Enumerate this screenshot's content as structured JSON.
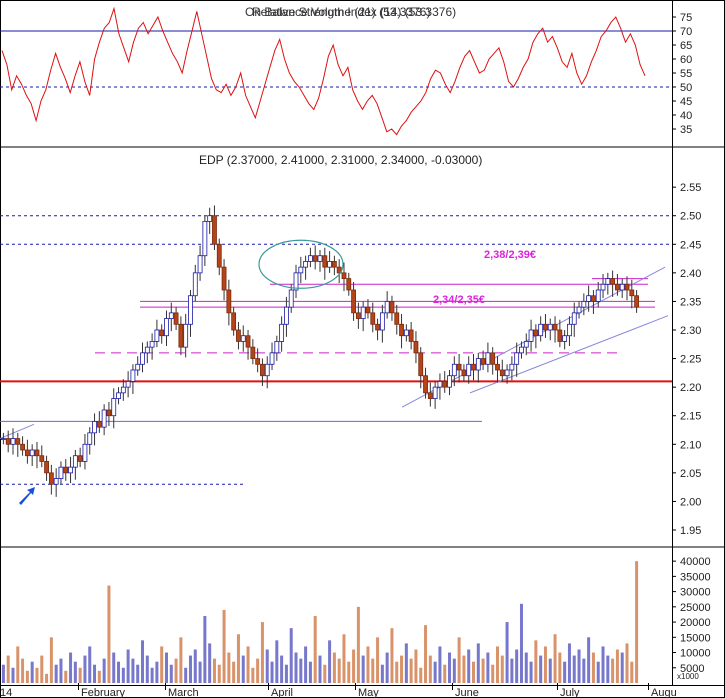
{
  "chart_data": [
    {
      "panel": "rsi",
      "type": "line",
      "title": "Relative Strength Index (14) (53.3376)",
      "overlay_title": "On Balance Volume (21) (53.3376)",
      "ylim": [
        30,
        80
      ],
      "yticks": [
        35,
        40,
        45,
        50,
        55,
        60,
        65,
        70,
        75
      ],
      "reference_lines": [
        70,
        50
      ],
      "series": [
        {
          "color": "#dd1111",
          "values": [
            63,
            58,
            49,
            54,
            51,
            47,
            44,
            38,
            45,
            49,
            56,
            62,
            57,
            53,
            48,
            54,
            59,
            52,
            47,
            60,
            66,
            71,
            73,
            78,
            69,
            64,
            59,
            66,
            71,
            73,
            69,
            72,
            75,
            70,
            66,
            62,
            59,
            55,
            63,
            70,
            77,
            69,
            61,
            53,
            49,
            48,
            51,
            47,
            50,
            55,
            47,
            43,
            39,
            45,
            51,
            57,
            63,
            67,
            60,
            55,
            52,
            50,
            47,
            44,
            42,
            46,
            53,
            61,
            65,
            58,
            54,
            57,
            49,
            45,
            42,
            45,
            47,
            44,
            39,
            34,
            35,
            33,
            36,
            38,
            41,
            43,
            45,
            48,
            53,
            56,
            55,
            51,
            48,
            52,
            57,
            61,
            63,
            59,
            55,
            56,
            60,
            62,
            64,
            59,
            52,
            50,
            53,
            57,
            60,
            66,
            69,
            71,
            66,
            68,
            64,
            59,
            57,
            62,
            55,
            51,
            54,
            59,
            63,
            68,
            70,
            73,
            75,
            71,
            66,
            69,
            65,
            58,
            54
          ]
        }
      ]
    },
    {
      "panel": "price",
      "type": "candlestick",
      "title": "EDP (2.37000, 2.41000, 2.31000, 2.34000, -0.03000)",
      "ylim": [
        1.95,
        2.58
      ],
      "yticks": [
        "1.95",
        "2.00",
        "2.05",
        "2.10",
        "2.15",
        "2.20",
        "2.25",
        "2.30",
        "2.35",
        "2.40",
        "2.45",
        "2.50",
        "2.55"
      ],
      "x_labels": [
        "14",
        "February",
        "March",
        "April",
        "May",
        "June",
        "July",
        "Augu"
      ],
      "closes": [
        2.11,
        2.1,
        2.11,
        2.1,
        2.09,
        2.08,
        2.09,
        2.08,
        2.07,
        2.05,
        2.03,
        2.04,
        2.06,
        2.05,
        2.06,
        2.08,
        2.07,
        2.1,
        2.12,
        2.14,
        2.13,
        2.16,
        2.15,
        2.18,
        2.19,
        2.2,
        2.21,
        2.23,
        2.24,
        2.26,
        2.27,
        2.28,
        2.3,
        2.29,
        2.32,
        2.33,
        2.31,
        2.27,
        2.31,
        2.36,
        2.4,
        2.43,
        2.49,
        2.5,
        2.45,
        2.41,
        2.37,
        2.33,
        2.3,
        2.28,
        2.29,
        2.27,
        2.25,
        2.24,
        2.22,
        2.24,
        2.26,
        2.28,
        2.31,
        2.34,
        2.37,
        2.4,
        2.41,
        2.42,
        2.43,
        2.42,
        2.43,
        2.41,
        2.42,
        2.41,
        2.4,
        2.39,
        2.37,
        2.33,
        2.32,
        2.34,
        2.33,
        2.31,
        2.3,
        2.33,
        2.35,
        2.33,
        2.31,
        2.29,
        2.3,
        2.28,
        2.26,
        2.22,
        2.19,
        2.18,
        2.2,
        2.21,
        2.2,
        2.22,
        2.24,
        2.23,
        2.22,
        2.24,
        2.23,
        2.25,
        2.24,
        2.26,
        2.24,
        2.23,
        2.22,
        2.23,
        2.24,
        2.26,
        2.27,
        2.28,
        2.3,
        2.29,
        2.31,
        2.3,
        2.31,
        2.3,
        2.28,
        2.29,
        2.31,
        2.33,
        2.34,
        2.35,
        2.36,
        2.35,
        2.37,
        2.38,
        2.39,
        2.38,
        2.37,
        2.38,
        2.37,
        2.36,
        2.34
      ],
      "horizontal_lines": [
        {
          "y": 2.03,
          "style": "dotted",
          "color": "#1a1aa6"
        },
        {
          "y": 2.14,
          "style": "solid",
          "color": "#6666dd"
        },
        {
          "y": 2.21,
          "style": "solid",
          "color": "#dd1111"
        },
        {
          "y": 2.26,
          "style": "dashed",
          "color": "#cc22cc"
        },
        {
          "y": 2.34,
          "style": "solid",
          "color": "#cc22cc"
        },
        {
          "y": 2.35,
          "style": "solid",
          "color": "#cc22cc"
        },
        {
          "y": 2.38,
          "style": "solid",
          "color": "#cc22cc"
        },
        {
          "y": 2.39,
          "style": "solid",
          "color": "#cc22cc"
        },
        {
          "y": 2.45,
          "style": "dotted",
          "color": "#1a1aa6"
        },
        {
          "y": 2.5,
          "style": "dotted",
          "color": "#1a1aa6"
        }
      ],
      "annotations": [
        {
          "text": "2,38/2,39€",
          "color": "#dd22dd"
        },
        {
          "text": "2,34/2,35€",
          "color": "#dd22dd"
        }
      ]
    },
    {
      "panel": "volume",
      "type": "bar",
      "ylim": [
        0,
        43000
      ],
      "yticks": [
        5000,
        10000,
        15000,
        20000,
        25000,
        30000,
        35000,
        40000
      ],
      "unit_label": "x1000",
      "values": [
        6000,
        9000,
        5000,
        12000,
        8000,
        4000,
        7000,
        5000,
        9000,
        3000,
        15000,
        6000,
        8000,
        4000,
        10000,
        7000,
        5000,
        9000,
        12000,
        6000,
        4000,
        8000,
        32000,
        10000,
        7000,
        5000,
        11000,
        8000,
        6000,
        14000,
        9000,
        5000,
        7000,
        12000,
        10000,
        6000,
        8000,
        15000,
        5000,
        9000,
        11000,
        7000,
        22000,
        13000,
        8000,
        6000,
        24000,
        10000,
        7000,
        16000,
        9000,
        12000,
        5000,
        8000,
        20000,
        11000,
        7000,
        14000,
        9000,
        6000,
        18000,
        10000,
        8000,
        12000,
        7000,
        22000,
        9000,
        6000,
        14000,
        10000,
        8000,
        16000,
        7000,
        11000,
        25000,
        9000,
        12000,
        8000,
        15000,
        6000,
        10000,
        18000,
        7000,
        9000,
        13000,
        8000,
        11000,
        5000,
        19000,
        9000,
        7000,
        12000,
        6000,
        10000,
        8000,
        15000,
        9000,
        11000,
        7000,
        13000,
        8000,
        10000,
        6000,
        12000,
        9000,
        20000,
        8000,
        11000,
        26000,
        10000,
        7000,
        14000,
        9000,
        12000,
        8000,
        16000,
        10000,
        7000,
        13000,
        9000,
        11000,
        8000,
        15000,
        10000,
        7000,
        12000,
        9000,
        8000,
        11000,
        10000,
        13000,
        7000,
        40000
      ]
    }
  ]
}
